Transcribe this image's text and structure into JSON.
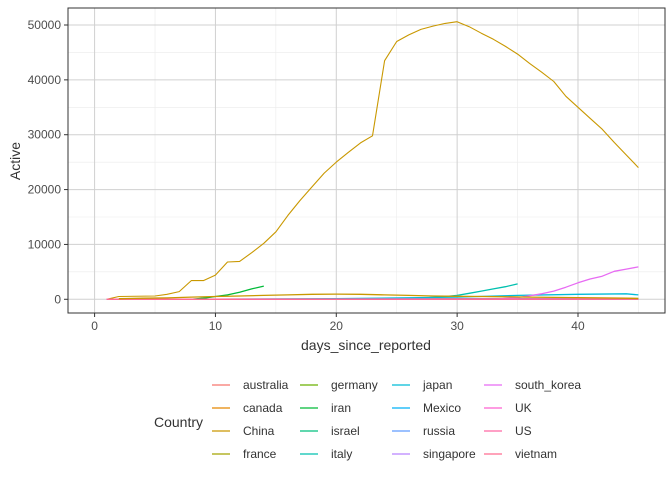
{
  "chart_data": {
    "type": "line",
    "title": "",
    "xlabel": "days_since_reported",
    "ylabel": "Active",
    "xlim": [
      -2.2,
      47.2
    ],
    "ylim": [
      -2500,
      53100
    ],
    "x_ticks": [
      0,
      10,
      20,
      30,
      40
    ],
    "y_ticks": [
      0,
      10000,
      20000,
      30000,
      40000,
      50000
    ],
    "y_tick_labels": [
      "0",
      "10000",
      "20000",
      "30000",
      "40000",
      "50000"
    ],
    "grid": true,
    "legend": {
      "title": "Country",
      "placement": "bottom",
      "columns": [
        [
          "australia",
          "canada",
          "China",
          "france"
        ],
        [
          "germany",
          "iran",
          "israel",
          "italy"
        ],
        [
          "japan",
          "Mexico",
          "russia",
          "singapore"
        ],
        [
          "south_korea",
          "UK",
          "US",
          "vietnam"
        ]
      ]
    },
    "series": [
      {
        "name": "australia",
        "color": "#F8766D",
        "x": [
          1,
          10,
          20,
          30,
          45
        ],
        "y": [
          0,
          5,
          15,
          25,
          40
        ]
      },
      {
        "name": "canada",
        "color": "#E58700",
        "x": [
          1,
          10,
          20,
          30,
          45
        ],
        "y": [
          0,
          2,
          10,
          30,
          60
        ]
      },
      {
        "name": "China",
        "color": "#C99800",
        "x": [
          1,
          2,
          5,
          6,
          7,
          8,
          9,
          10,
          11,
          12,
          13,
          14,
          15,
          16,
          17,
          18,
          19,
          20,
          21,
          22,
          23,
          24,
          25,
          26,
          27,
          28,
          29,
          30,
          31,
          32,
          33,
          34,
          35,
          36,
          37,
          38,
          39,
          40,
          41,
          42,
          43,
          44,
          45
        ],
        "y": [
          0,
          500,
          600,
          900,
          1400,
          3400,
          3400,
          4400,
          6800,
          6900,
          8500,
          10200,
          12300,
          15300,
          18000,
          20500,
          23000,
          25000,
          26800,
          28500,
          29800,
          43500,
          47000,
          48200,
          49200,
          49800,
          50300,
          50600,
          49700,
          48500,
          47400,
          46100,
          44700,
          43000,
          41400,
          39700,
          37000,
          35000,
          33000,
          31000,
          28600,
          26300,
          24000
        ]
      },
      {
        "name": "france",
        "color": "#A3A500",
        "x": [
          1,
          10,
          20,
          30,
          45
        ],
        "y": [
          0,
          10,
          50,
          100,
          150
        ]
      },
      {
        "name": "germany",
        "color": "#6BB100",
        "x": [
          1,
          10,
          20,
          30,
          45
        ],
        "y": [
          0,
          5,
          20,
          80,
          150
        ]
      },
      {
        "name": "iran",
        "color": "#00BA38",
        "x": [
          8,
          9,
          10,
          11,
          12,
          13,
          14
        ],
        "y": [
          0,
          200,
          500,
          800,
          1300,
          1900,
          2400
        ]
      },
      {
        "name": "israel",
        "color": "#00BF7D",
        "x": [
          1,
          10,
          20,
          30,
          45
        ],
        "y": [
          0,
          2,
          5,
          10,
          20
        ]
      },
      {
        "name": "italy",
        "color": "#00C0AF",
        "x": [
          25,
          27,
          29,
          30,
          31,
          32,
          33,
          34,
          35
        ],
        "y": [
          0,
          200,
          500,
          700,
          1100,
          1500,
          1900,
          2300,
          2800
        ]
      },
      {
        "name": "japan",
        "color": "#00BCD8",
        "x": [
          1,
          10,
          20,
          30,
          35,
          40,
          44,
          45
        ],
        "y": [
          0,
          40,
          100,
          400,
          700,
          900,
          1000,
          800
        ]
      },
      {
        "name": "Mexico",
        "color": "#00B0F6",
        "x": [
          1,
          10,
          20,
          30,
          45
        ],
        "y": [
          0,
          1,
          3,
          5,
          10
        ]
      },
      {
        "name": "russia",
        "color": "#619CFF",
        "x": [
          1,
          10,
          20,
          30,
          45
        ],
        "y": [
          0,
          2,
          5,
          10,
          20
        ]
      },
      {
        "name": "singapore",
        "color": "#B983FF",
        "x": [
          1,
          10,
          20,
          30,
          45
        ],
        "y": [
          0,
          30,
          60,
          80,
          100
        ]
      },
      {
        "name": "south_korea",
        "color": "#E76BF3",
        "x": [
          33,
          35,
          37,
          38,
          39,
          40,
          41,
          42,
          43,
          44,
          45
        ],
        "y": [
          0,
          300,
          1000,
          1500,
          2200,
          3000,
          3700,
          4200,
          5100,
          5500,
          5900
        ]
      },
      {
        "name": "UK",
        "color": "#FD61D1",
        "x": [
          1,
          10,
          20,
          30,
          45
        ],
        "y": [
          0,
          5,
          10,
          20,
          30
        ]
      },
      {
        "name": "US",
        "color": "#FF67A4",
        "x": [
          1,
          10,
          20,
          30,
          45
        ],
        "y": [
          0,
          10,
          20,
          40,
          60
        ]
      },
      {
        "name": "vietnam",
        "color": "#FF6C91",
        "x": [
          1,
          10,
          20,
          30,
          45
        ],
        "y": [
          0,
          5,
          10,
          10,
          10
        ]
      },
      {
        "name": "",
        "color": "#C99800",
        "x": [
          2,
          4,
          6,
          8,
          10,
          12,
          14,
          16,
          18,
          20,
          22,
          24,
          26,
          28,
          30,
          32,
          34,
          36,
          38,
          40,
          42,
          44,
          45
        ],
        "y": [
          100,
          200,
          250,
          400,
          500,
          600,
          700,
          800,
          900,
          950,
          900,
          800,
          700,
          600,
          550,
          500,
          450,
          400,
          350,
          300,
          250,
          200,
          150
        ]
      }
    ]
  }
}
